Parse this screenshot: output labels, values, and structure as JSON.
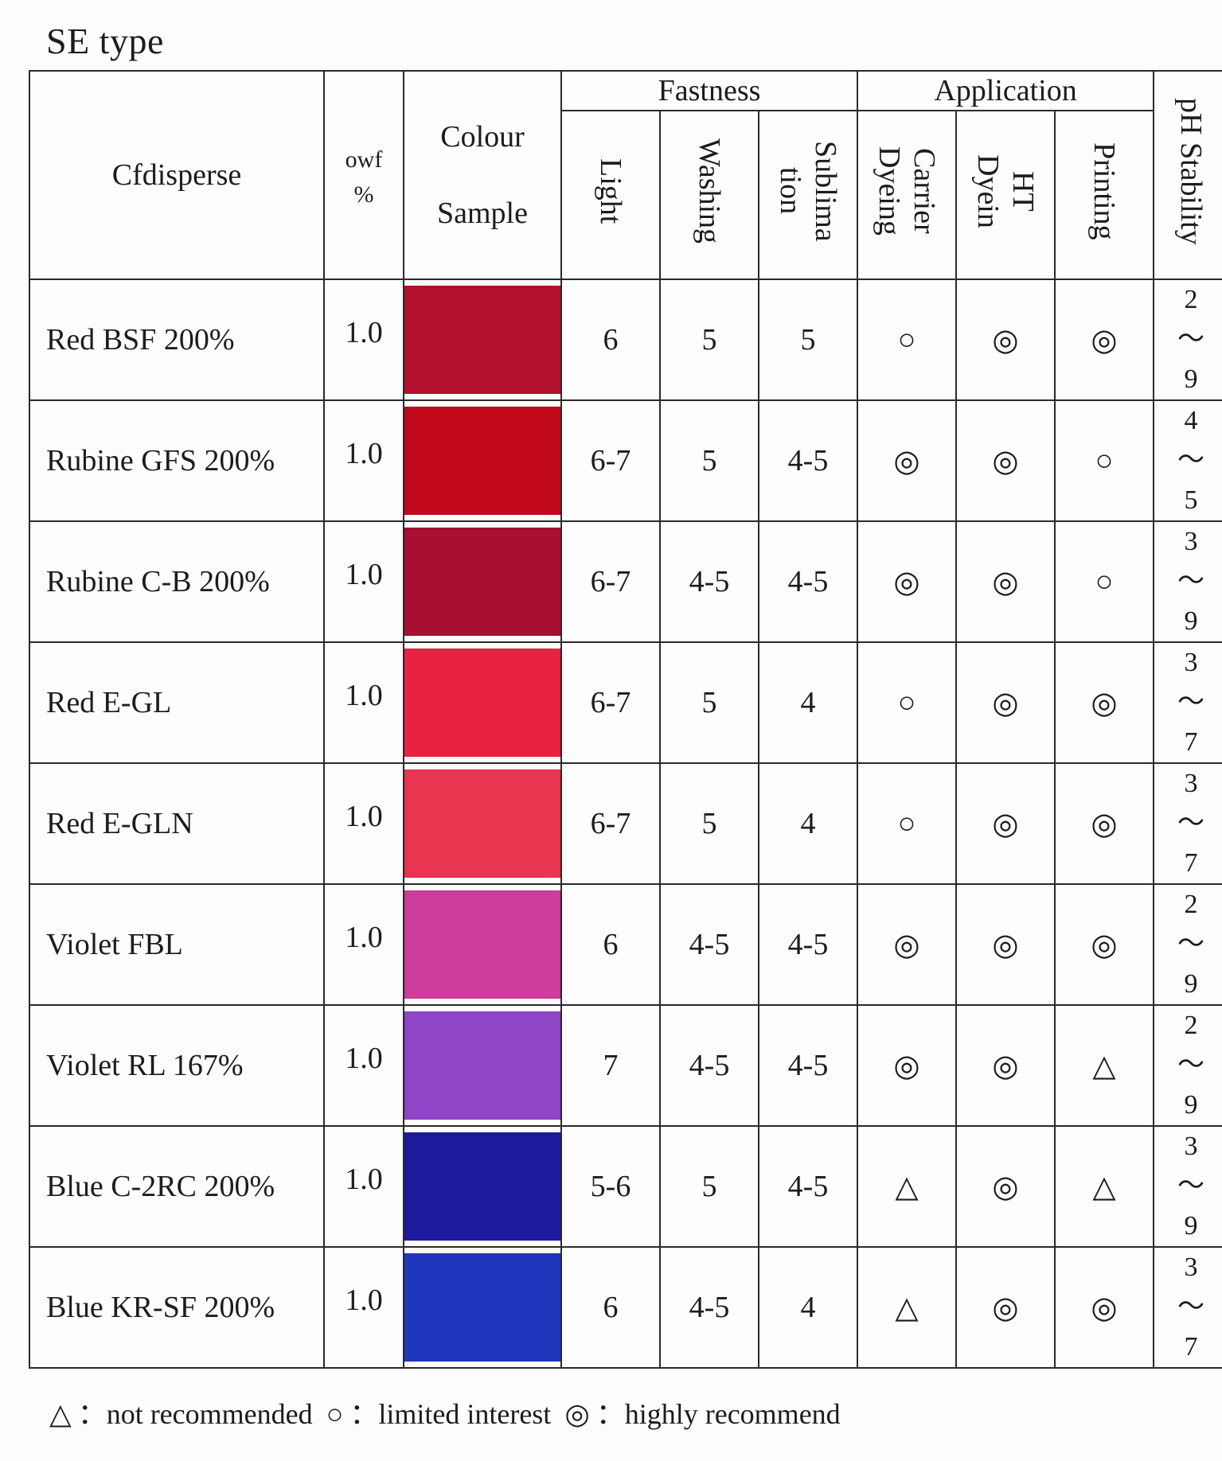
{
  "title": "SE type",
  "headers": {
    "name": "Cfdisperse",
    "owf": "owf\n%",
    "colour": "Colour\nSample",
    "fastness": "Fastness",
    "application": "Application",
    "ph": "pH Stability",
    "light": "Light",
    "washing": "Washing",
    "sublimation": "Sublima\ntion",
    "carrier": "Carrier\nDyeing",
    "ht": "HT\nDyein",
    "printing": "Printing"
  },
  "rows": [
    {
      "name": "Red BSF 200%",
      "owf": "1.0",
      "color": "#b3102e",
      "light": "6",
      "washing": "5",
      "sublimation": "5",
      "carrier": "○",
      "ht": "◎",
      "printing": "◎",
      "ph": "2\n～\n9"
    },
    {
      "name": "Rubine GFS 200%",
      "owf": "1.0",
      "color": "#c20a1c",
      "light": "6-7",
      "washing": "5",
      "sublimation": "4-5",
      "carrier": "◎",
      "ht": "◎",
      "printing": "○",
      "ph": "4\n～\n5"
    },
    {
      "name": "Rubine C-B 200%",
      "owf": "1.0",
      "color": "#a80f33",
      "light": "6-7",
      "washing": "4-5",
      "sublimation": "4-5",
      "carrier": "◎",
      "ht": "◎",
      "printing": "○",
      "ph": "3\n～\n9"
    },
    {
      "name": "Red E-GL",
      "owf": "1.0",
      "color": "#ea2241",
      "light": "6-7",
      "washing": "5",
      "sublimation": "4",
      "carrier": "○",
      "ht": "◎",
      "printing": "◎",
      "ph": "3\n～\n7"
    },
    {
      "name": "Red E-GLN",
      "owf": "1.0",
      "color": "#ea3550",
      "light": "6-7",
      "washing": "5",
      "sublimation": "4",
      "carrier": "○",
      "ht": "◎",
      "printing": "◎",
      "ph": "3\n～\n7"
    },
    {
      "name": "Violet FBL",
      "owf": "1.0",
      "color": "#cf3c9b",
      "light": "6",
      "washing": "4-5",
      "sublimation": "4-5",
      "carrier": "◎",
      "ht": "◎",
      "printing": "◎",
      "ph": "2\n～\n9"
    },
    {
      "name": "Violet RL 167%",
      "owf": "1.0",
      "color": "#8f45c6",
      "light": "7",
      "washing": "4-5",
      "sublimation": "4-5",
      "carrier": "◎",
      "ht": "◎",
      "printing": "△",
      "ph": "2\n～\n9"
    },
    {
      "name": "Blue C-2RC 200%",
      "owf": "1.0",
      "color": "#1d1aa0",
      "light": "5-6",
      "washing": "5",
      "sublimation": "4-5",
      "carrier": "△",
      "ht": "◎",
      "printing": "△",
      "ph": "3\n～\n9"
    },
    {
      "name": "Blue KR-SF 200%",
      "owf": "1.0",
      "color": "#1f37bd",
      "light": "6",
      "washing": "4-5",
      "sublimation": "4",
      "carrier": "△",
      "ht": "◎",
      "printing": "◎",
      "ph": "3\n～\n7"
    }
  ],
  "legend": {
    "triangle_symbol": "△",
    "triangle_text": "：not recommended",
    "circle_symbol": "○",
    "circle_text": "：limited interest",
    "double_symbol": "◎",
    "double_text": "：highly recommend"
  }
}
